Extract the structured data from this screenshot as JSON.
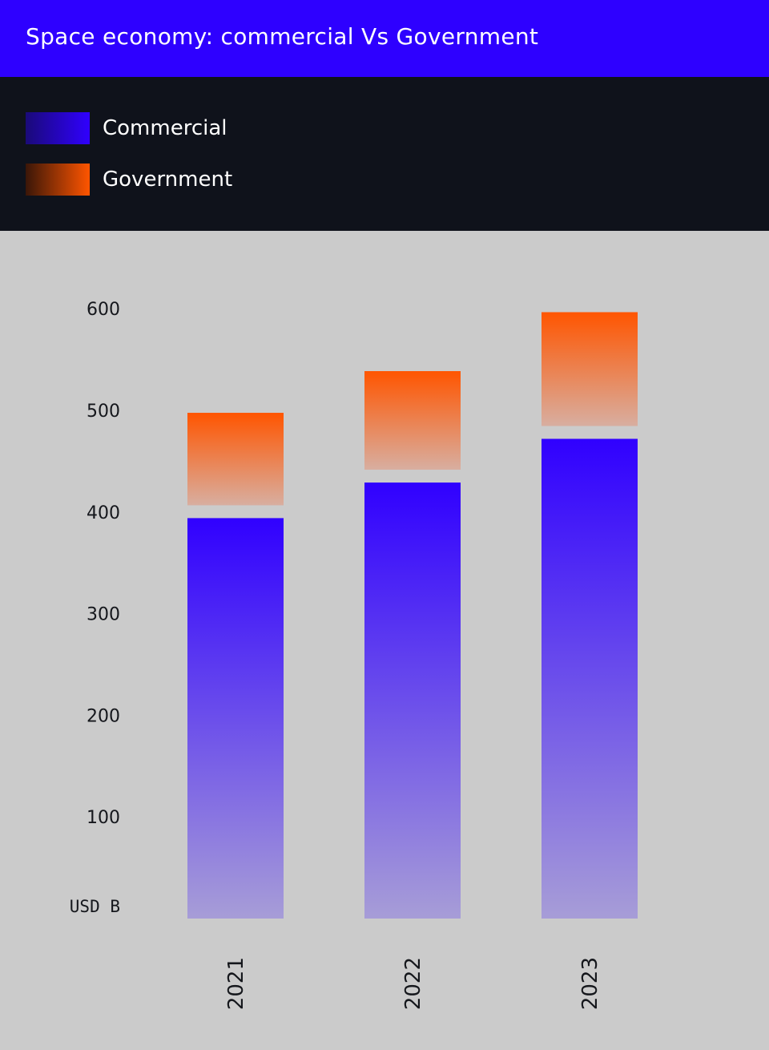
{
  "header": {
    "title": "Space economy: commercial Vs Government"
  },
  "colors": {
    "header_bg": "#2e00ff",
    "legend_bg": "#0f121b",
    "plot_bg": "#cbcbcb",
    "commercial_top": "#3000ff",
    "commercial_bottom": "#a79dd7",
    "government_top": "#ff5500",
    "government_bottom": "#d8aea0"
  },
  "legend": {
    "items": [
      {
        "label": "Commercial",
        "series": "commercial"
      },
      {
        "label": "Government",
        "series": "government"
      }
    ]
  },
  "chart_data": {
    "type": "bar",
    "title": "Space economy: commercial Vs Government",
    "unit_label": "USD B",
    "categories": [
      "2021",
      "2022",
      "2023"
    ],
    "series": [
      {
        "name": "Commercial",
        "values": [
          394,
          429,
          472
        ]
      },
      {
        "name": "Government",
        "values": [
          91,
          97,
          112
        ]
      }
    ],
    "stacked": true,
    "yticks": [
      100,
      200,
      300,
      400,
      500,
      600
    ],
    "ylim": [
      0,
      600
    ],
    "grid": false,
    "legend_position": "top-left"
  }
}
